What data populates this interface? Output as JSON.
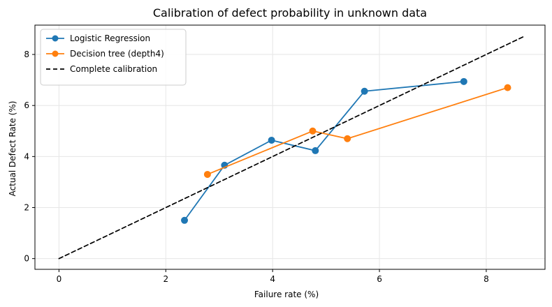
{
  "chart_data": {
    "type": "line",
    "title": "Calibration of defect probability in unknown data",
    "xlabel": "Failure rate (%)",
    "ylabel": "Actual Defect Rate (%)",
    "xlim": [
      -0.45,
      9.1
    ],
    "ylim": [
      -0.42,
      9.15
    ],
    "x_ticks": [
      0,
      2,
      4,
      6,
      8
    ],
    "y_ticks": [
      0,
      2,
      4,
      6,
      8
    ],
    "grid": true,
    "legend": {
      "position": "top-left"
    },
    "series": [
      {
        "name": "Logistic Regression",
        "color": "#1f77b4",
        "style": "solid",
        "marker": "circle",
        "x": [
          2.35,
          3.1,
          3.98,
          4.8,
          5.72,
          7.58
        ],
        "y": [
          1.5,
          3.66,
          4.64,
          4.23,
          6.56,
          6.94
        ]
      },
      {
        "name": "Decision tree (depth4)",
        "color": "#ff7f0e",
        "style": "solid",
        "marker": "circle",
        "x": [
          2.78,
          4.75,
          5.4,
          8.4
        ],
        "y": [
          3.3,
          5.0,
          4.7,
          6.7
        ]
      },
      {
        "name": "Complete calibration",
        "color": "#000000",
        "style": "dashed",
        "marker": "none",
        "x": [
          0,
          8.7
        ],
        "y": [
          0,
          8.7
        ]
      }
    ]
  }
}
